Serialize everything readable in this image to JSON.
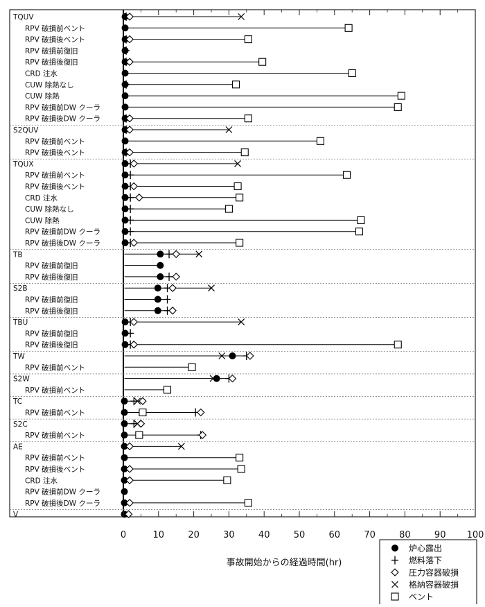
{
  "chart_data": {
    "type": "scatter",
    "xlabel": "事故開始からの経過時間(hr)",
    "xlim": [
      0,
      100
    ],
    "xticks": [
      0,
      10,
      20,
      30,
      40,
      50,
      60,
      70,
      80,
      90,
      100
    ],
    "xtick_labels": [
      "0",
      "10",
      "20",
      "30",
      "40",
      "50",
      "60",
      "70",
      "80",
      "90",
      "100"
    ],
    "legend": [
      {
        "key": "core",
        "label": "炉心露出",
        "marker": "filled-circle"
      },
      {
        "key": "fuel",
        "label": "燃料落下",
        "marker": "plus"
      },
      {
        "key": "rpv",
        "label": "圧力容器破損",
        "marker": "diamond"
      },
      {
        "key": "pcv",
        "label": "格納容器破損",
        "marker": "x"
      },
      {
        "key": "vent",
        "label": "ベント",
        "marker": "square"
      }
    ],
    "groups": [
      {
        "name": "TQUV",
        "rows": [
          {
            "label": "TQUV",
            "core": 0.5,
            "fuel": 0.8,
            "rpv": 1.8,
            "pcv": 33.5
          },
          {
            "label": "RPV 破損前ベント",
            "core": 0.5,
            "vent": 64
          },
          {
            "label": "RPV 破損後ベント",
            "core": 0.5,
            "fuel": 0.8,
            "rpv": 1.8,
            "vent": 35.5
          },
          {
            "label": "RPV 破損前復旧",
            "core": 0.5,
            "fuel": 0.8
          },
          {
            "label": "RPV 破損後復旧",
            "core": 0.5,
            "fuel": 0.8,
            "rpv": 1.8,
            "vent": 39.5
          },
          {
            "label": "CRD 注水",
            "core": 0.5,
            "vent": 65
          },
          {
            "label": "CUW 除熱なし",
            "core": 0.5,
            "fuel": 0.8,
            "vent": 32
          },
          {
            "label": "CUW 除熱",
            "core": 0.5,
            "vent": 79
          },
          {
            "label": "RPV 破損前DW クーラ",
            "core": 0.5,
            "vent": 78
          },
          {
            "label": "RPV 破損後DW クーラ",
            "core": 0.5,
            "fuel": 0.8,
            "rpv": 1.8,
            "vent": 35.5
          }
        ]
      },
      {
        "name": "S2QUV",
        "rows": [
          {
            "label": "S2QUV",
            "core": 0.5,
            "fuel": 0.8,
            "rpv": 1.8,
            "pcv": 30
          },
          {
            "label": "RPV 破損前ベント",
            "core": 0.5,
            "vent": 56
          },
          {
            "label": "RPV 破損後ベント",
            "core": 0.5,
            "fuel": 0.8,
            "rpv": 1.8,
            "vent": 34.5
          }
        ]
      },
      {
        "name": "TQUX",
        "rows": [
          {
            "label": "TQUX",
            "core": 0.5,
            "fuel": 2,
            "rpv": 3,
            "pcv": 32.5
          },
          {
            "label": "RPV 破損前ベント",
            "core": 0.5,
            "fuel": 2,
            "vent": 63.5
          },
          {
            "label": "RPV 破損後ベント",
            "core": 0.5,
            "fuel": 2,
            "rpv": 3,
            "vent": 32.5
          },
          {
            "label": "CRD 注水",
            "core": 0.5,
            "fuel": 2,
            "rpv": 4.5,
            "vent": 33
          },
          {
            "label": "CUW 除熱なし",
            "core": 0.5,
            "fuel": 2,
            "vent": 30
          },
          {
            "label": "CUW 除熱",
            "core": 0.5,
            "fuel": 2,
            "vent": 67.5
          },
          {
            "label": "RPV 破損前DW クーラ",
            "core": 0.5,
            "fuel": 2,
            "vent": 67
          },
          {
            "label": "RPV 破損後DW クーラ",
            "core": 0.5,
            "fuel": 2,
            "rpv": 3,
            "vent": 33
          }
        ]
      },
      {
        "name": "TB",
        "rows": [
          {
            "label": "TB",
            "core": 10.5,
            "fuel": 13,
            "rpv": 15,
            "pcv": 21.5
          },
          {
            "label": "RPV 破損前復旧",
            "core": 10.5
          },
          {
            "label": "RPV 破損後復旧",
            "core": 10.5,
            "fuel": 13,
            "rpv": 15
          }
        ]
      },
      {
        "name": "S2B",
        "rows": [
          {
            "label": "S2B",
            "core": 9.8,
            "fuel": 12.5,
            "rpv": 14,
            "pcv": 25
          },
          {
            "label": "RPV 破損前復旧",
            "core": 9.8,
            "fuel": 12.5
          },
          {
            "label": "RPV 破損後復旧",
            "core": 9.8,
            "fuel": 12.5,
            "rpv": 14
          }
        ]
      },
      {
        "name": "TBU",
        "rows": [
          {
            "label": "TBU",
            "core": 0.5,
            "fuel": 2,
            "rpv": 3,
            "pcv": 33.5
          },
          {
            "label": "RPV 破損前復旧",
            "core": 0.5,
            "fuel": 2
          },
          {
            "label": "RPV 破損後復旧",
            "core": 0.5,
            "fuel": 2,
            "rpv": 3,
            "vent": 78
          }
        ]
      },
      {
        "name": "TW",
        "rows": [
          {
            "label": "TW",
            "core": 31,
            "fuel": 35,
            "rpv": 36,
            "pcv": 28
          },
          {
            "label": "RPV 破損前ベント",
            "vent": 19.5
          }
        ]
      },
      {
        "name": "S2W",
        "rows": [
          {
            "label": "S2W",
            "core": 26.5,
            "fuel": 30,
            "rpv": 31,
            "pcv": 25.5
          },
          {
            "label": "RPV 破損前ベント",
            "vent": 12.5
          }
        ]
      },
      {
        "name": "TC",
        "rows": [
          {
            "label": "TC",
            "core": 0.3,
            "fuel": 3,
            "rpv": 5.5,
            "pcv": 4
          },
          {
            "label": "RPV 破損前ベント",
            "core": 0.3,
            "vent": 5.5,
            "fuel": 20.5,
            "rpv": 22
          }
        ]
      },
      {
        "name": "S2C",
        "rows": [
          {
            "label": "S2C",
            "core": 0.3,
            "fuel": 3,
            "rpv": 5,
            "pcv": 4
          },
          {
            "label": "RPV 破損前ベント",
            "core": 0.3,
            "vent": 4.5,
            "fuel": 22,
            "rpv": 22.5
          }
        ]
      },
      {
        "name": "AE",
        "rows": [
          {
            "label": "AE",
            "core": 0.3,
            "rpv": 1.8,
            "pcv": 16.5
          },
          {
            "label": "RPV 破損前ベント",
            "core": 0.3,
            "vent": 33
          },
          {
            "label": "RPV 破損後ベント",
            "core": 0.3,
            "rpv": 1.8,
            "vent": 33.5
          },
          {
            "label": "CRD 注水",
            "core": 0.3,
            "rpv": 1.8,
            "vent": 29.5
          },
          {
            "label": "RPV 破損前DW クーラ",
            "core": 0.3
          },
          {
            "label": "RPV 破損後DW クーラ",
            "core": 0.3,
            "rpv": 1.8,
            "vent": 35.5
          }
        ]
      },
      {
        "name": "V",
        "rows": [
          {
            "label": "V",
            "core": 0.3,
            "rpv": 1.5
          }
        ]
      }
    ]
  }
}
